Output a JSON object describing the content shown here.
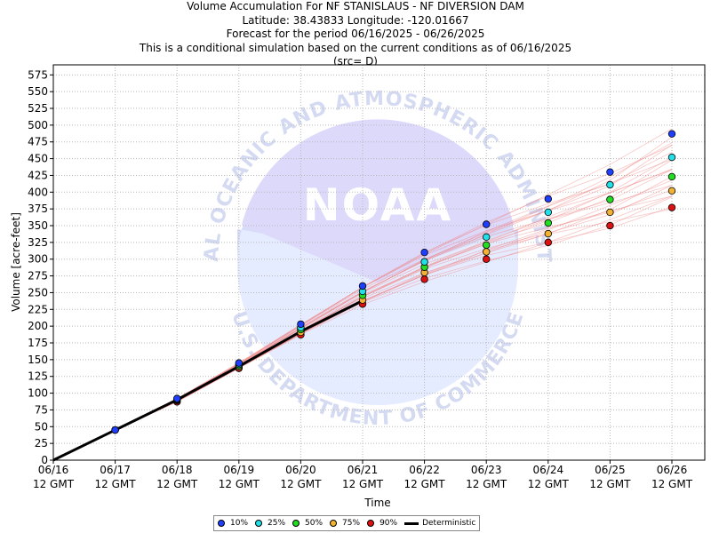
{
  "chart_data": {
    "type": "scatter",
    "title_lines": [
      "Volume Accumulation For NF STANISLAUS - NF DIVERSION DAM",
      "Latitude: 38.43833 Longitude: -120.01667",
      "Forecast for the period 06/16/2025 - 06/26/2025",
      "This is a conditional simulation based on the current conditions as of 06/16/2025",
      "(src= D)"
    ],
    "xlabel": "Time",
    "ylabel": "Volume [acre-feet]",
    "ylim": [
      0,
      590
    ],
    "yticks": [
      0,
      25,
      50,
      75,
      100,
      125,
      150,
      175,
      200,
      225,
      250,
      275,
      300,
      325,
      350,
      375,
      400,
      425,
      450,
      475,
      500,
      525,
      550,
      575
    ],
    "x_tick_dates": [
      "06/16",
      "06/17",
      "06/18",
      "06/19",
      "06/20",
      "06/21",
      "06/22",
      "06/23",
      "06/24",
      "06/25",
      "06/26"
    ],
    "x_tick_time": "12 GMT",
    "legend_placement": "bottom-center",
    "grid": true,
    "series": [
      {
        "name": "10%",
        "color": "#1f3fff",
        "x": [
          "06/17",
          "06/18",
          "06/19",
          "06/20",
          "06/21",
          "06/22",
          "06/23",
          "06/24",
          "06/25",
          "06/26"
        ],
        "values": [
          45,
          92,
          145,
          203,
          260,
          310,
          352,
          390,
          430,
          487
        ]
      },
      {
        "name": "25%",
        "color": "#22e0e8",
        "x": [
          "06/17",
          "06/18",
          "06/19",
          "06/20",
          "06/21",
          "06/22",
          "06/23",
          "06/24",
          "06/25",
          "06/26"
        ],
        "values": [
          45,
          91,
          143,
          198,
          252,
          296,
          333,
          370,
          411,
          452
        ]
      },
      {
        "name": "50%",
        "color": "#22dd22",
        "x": [
          "06/17",
          "06/18",
          "06/19",
          "06/20",
          "06/21",
          "06/22",
          "06/23",
          "06/24",
          "06/25",
          "06/26"
        ],
        "values": [
          45,
          90,
          141,
          195,
          246,
          288,
          321,
          354,
          389,
          423
        ]
      },
      {
        "name": "75%",
        "color": "#f2b233",
        "x": [
          "06/17",
          "06/18",
          "06/19",
          "06/20",
          "06/21",
          "06/22",
          "06/23",
          "06/24",
          "06/25",
          "06/26"
        ],
        "values": [
          45,
          89,
          139,
          191,
          239,
          280,
          311,
          338,
          370,
          402
        ]
      },
      {
        "name": "90%",
        "color": "#dd1111",
        "x": [
          "06/17",
          "06/18",
          "06/19",
          "06/20",
          "06/21",
          "06/22",
          "06/23",
          "06/24",
          "06/25",
          "06/26"
        ],
        "values": [
          45,
          87,
          137,
          187,
          233,
          270,
          300,
          325,
          350,
          377
        ]
      }
    ],
    "deterministic": {
      "name": "Deterministic",
      "color": "#000000",
      "x": [
        "06/16",
        "06/17",
        "06/18",
        "06/19",
        "06/20",
        "06/21"
      ],
      "values": [
        0,
        45,
        90,
        140,
        192,
        238
      ]
    },
    "watermark": {
      "logo_text": "NOAA",
      "ring_top": "NATIONAL OCEANIC AND ATMOSPHERIC ADMINISTRATION",
      "ring_bottom": "U.S. DEPARTMENT OF COMMERCE"
    }
  }
}
